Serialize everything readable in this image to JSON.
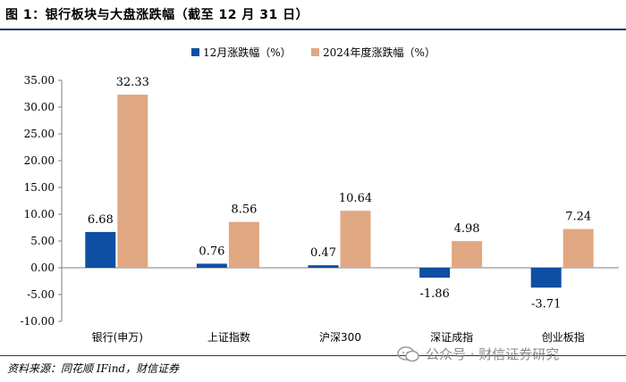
{
  "figure": {
    "title": "图 1：银行板块与大盘涨跌幅（截至 12 月 31 日）",
    "source": "资料来源：同花顺 IFind，财信证券",
    "watermark": "公众号 · 财信证券研究"
  },
  "colors": {
    "series1": "#0e4fa3",
    "series2": "#e0a882",
    "title_rule": "#1f3864"
  },
  "chart_data": {
    "type": "bar",
    "categories": [
      "银行(申万)",
      "上证指数",
      "沪深300",
      "深证成指",
      "创业板指"
    ],
    "series": [
      {
        "name": "12月涨跌幅（%）",
        "values": [
          6.68,
          0.76,
          0.47,
          -1.86,
          -3.71
        ],
        "labels": [
          "6.68",
          "0.76",
          "0.47",
          "-1.86",
          "-3.71"
        ]
      },
      {
        "name": "2024年度涨跌幅（%）",
        "values": [
          32.33,
          8.56,
          10.64,
          4.98,
          7.24
        ],
        "labels": [
          "32.33",
          "8.56",
          "10.64",
          "4.98",
          "7.24"
        ]
      }
    ],
    "yticks": [
      "-10.00",
      "-5.00",
      "0.00",
      "5.00",
      "10.00",
      "15.00",
      "20.00",
      "25.00",
      "30.00",
      "35.00"
    ],
    "ylim": [
      -10,
      35
    ],
    "title": "",
    "xlabel": "",
    "ylabel": "",
    "legend_position": "top-center"
  }
}
